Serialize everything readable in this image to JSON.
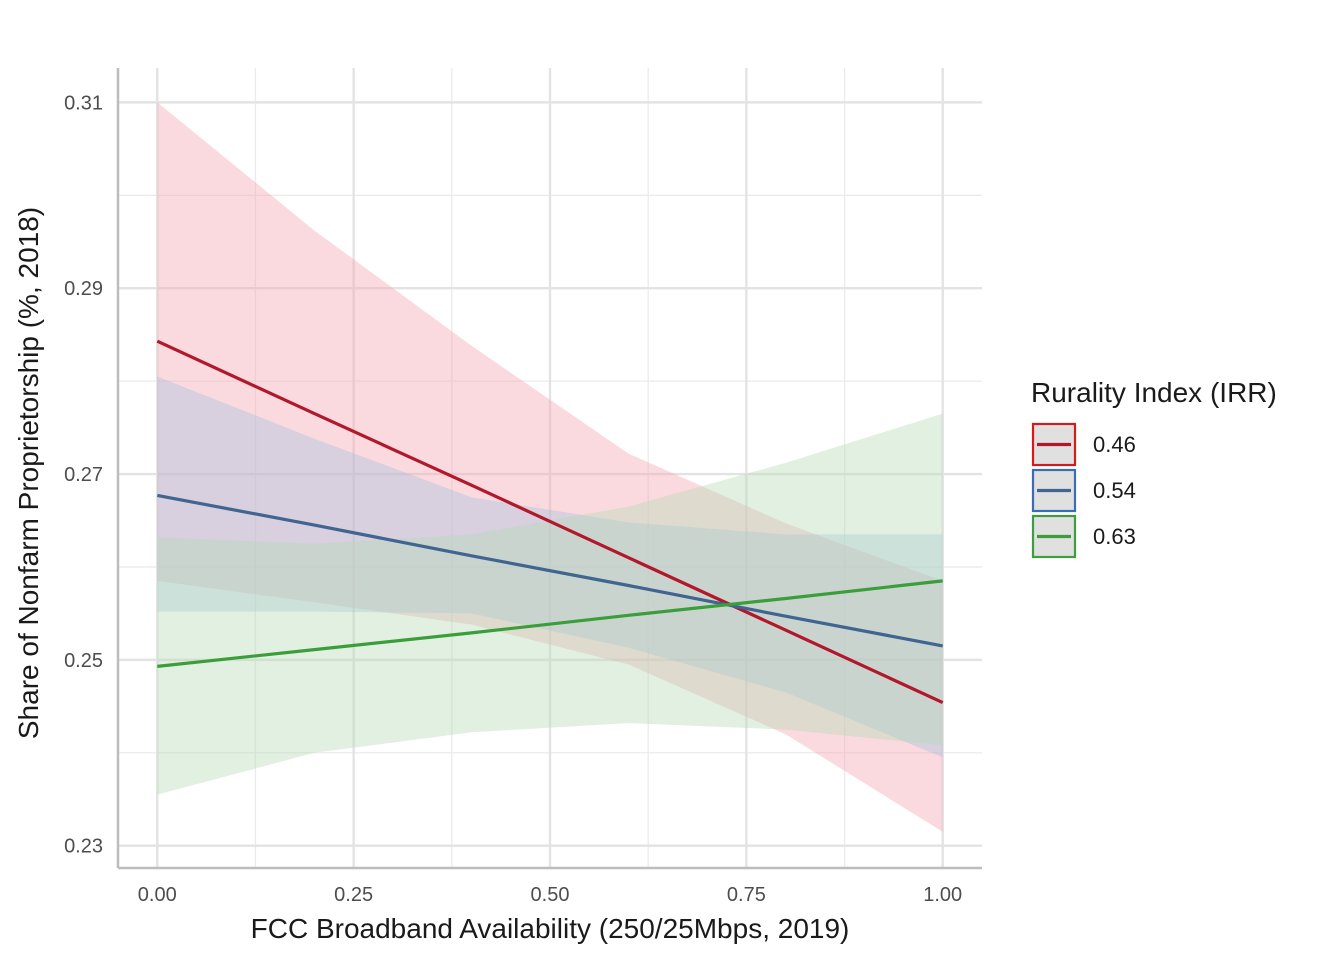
{
  "chart_data": {
    "type": "line",
    "xlabel": "FCC Broadband Availability (250/25Mbps, 2019)",
    "ylabel": "Share of Nonfarm Proprietorship (%, 2018)",
    "xlim": [
      -0.05,
      1.05
    ],
    "ylim": [
      0.2276,
      0.3137
    ],
    "x_ticks": [
      0.0,
      0.25,
      0.5,
      0.75,
      1.0
    ],
    "x_tick_labels": [
      "0.00",
      "0.25",
      "0.50",
      "0.75",
      "1.00"
    ],
    "y_ticks": [
      0.23,
      0.25,
      0.27,
      0.29,
      0.31
    ],
    "y_tick_labels": [
      "0.23",
      "0.25",
      "0.27",
      "0.29",
      "0.31"
    ],
    "grid": true,
    "legend": {
      "title": "Rurality Index (IRR)",
      "position": "right"
    },
    "x": [
      0.0,
      0.2,
      0.4,
      0.6,
      0.8,
      1.0
    ],
    "series": [
      {
        "name": "0.46",
        "color": "#d7191c",
        "line_color": "#b2182b",
        "fill_color": "#f4a6b0",
        "y": [
          0.2843,
          0.2765,
          0.2688,
          0.261,
          0.2532,
          0.2454
        ],
        "lower": [
          0.2585,
          0.2562,
          0.2538,
          0.2495,
          0.242,
          0.2315
        ],
        "upper": [
          0.31,
          0.2962,
          0.2838,
          0.2722,
          0.2647,
          0.2585
        ]
      },
      {
        "name": "0.54",
        "color": "#3b6db5",
        "line_color": "#3f6590",
        "fill_color": "#a9c1e0",
        "y": [
          0.2677,
          0.2645,
          0.2612,
          0.258,
          0.2547,
          0.2515
        ],
        "lower": [
          0.2552,
          0.2552,
          0.255,
          0.2513,
          0.2465,
          0.2395
        ],
        "upper": [
          0.2805,
          0.2738,
          0.2675,
          0.2648,
          0.2635,
          0.2635
        ]
      },
      {
        "name": "0.63",
        "color": "#3e9e3e",
        "line_color": "#3a9e3a",
        "fill_color": "#b8dcb8",
        "y": [
          0.2493,
          0.2511,
          0.2529,
          0.2548,
          0.2566,
          0.2585
        ],
        "lower": [
          0.2355,
          0.24,
          0.2422,
          0.2432,
          0.2425,
          0.2408
        ],
        "upper": [
          0.2632,
          0.2625,
          0.2635,
          0.2665,
          0.2712,
          0.2765
        ]
      }
    ]
  }
}
